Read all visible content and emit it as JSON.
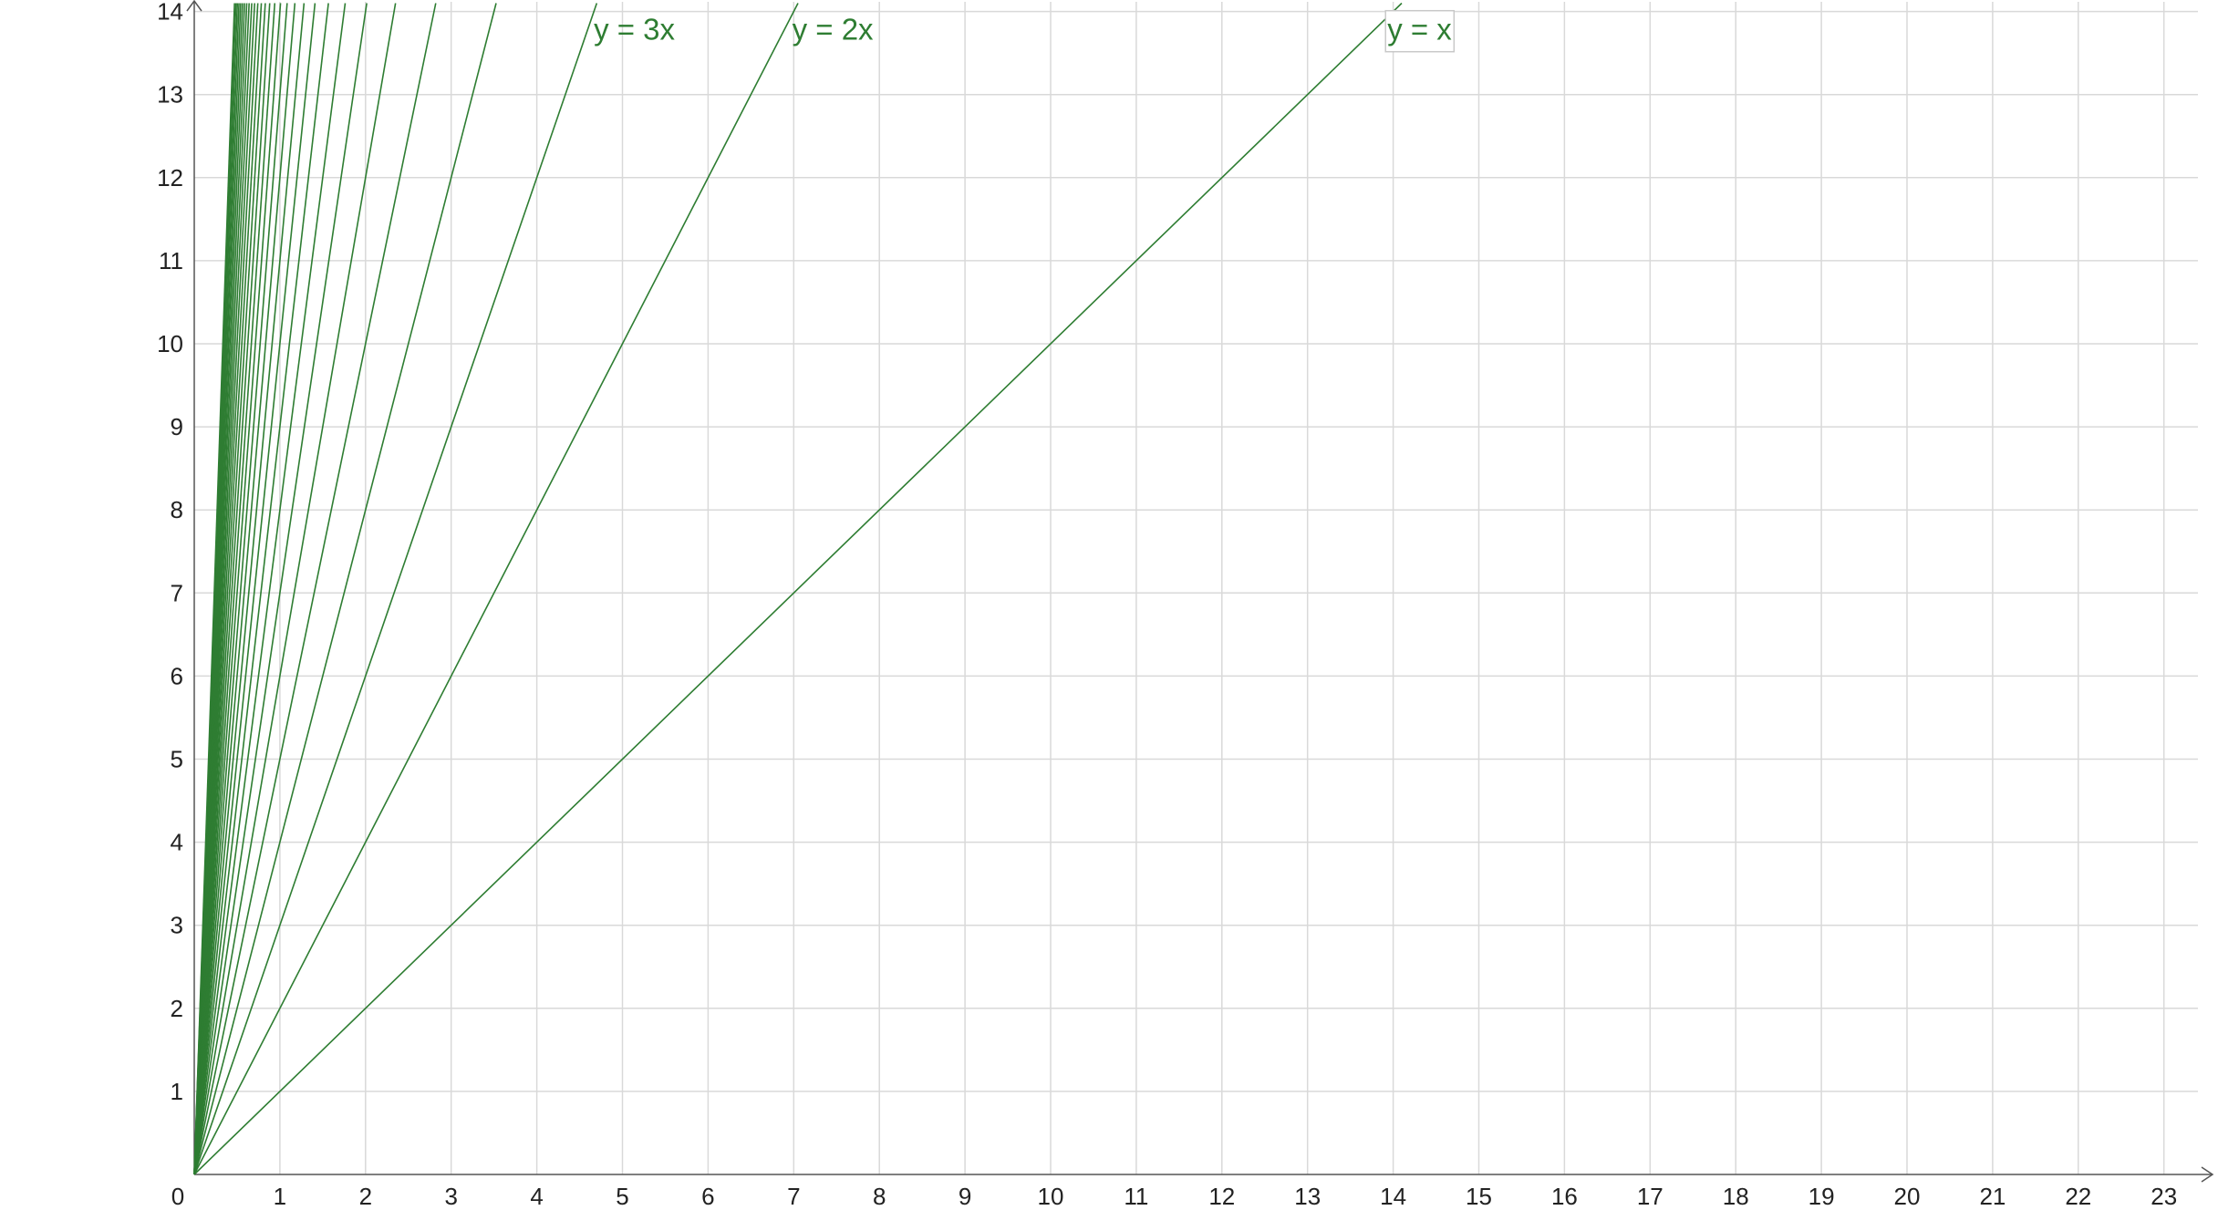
{
  "colors": {
    "series": "#2e7d32",
    "grid": "#d9d9d9",
    "axis": "#555555"
  },
  "chart_data": {
    "type": "line",
    "title": "",
    "xlabel": "",
    "ylabel": "",
    "xlim": [
      0,
      23.3
    ],
    "ylim": [
      0,
      14.1
    ],
    "grid": true,
    "x_ticks": [
      "0",
      "1",
      "2",
      "3",
      "4",
      "5",
      "6",
      "7",
      "8",
      "9",
      "10",
      "11",
      "12",
      "13",
      "14",
      "15",
      "16",
      "17",
      "18",
      "19",
      "20",
      "21",
      "22",
      "23"
    ],
    "y_ticks": [
      "1",
      "2",
      "3",
      "4",
      "5",
      "6",
      "7",
      "8",
      "9",
      "10",
      "11",
      "12",
      "13",
      "14"
    ],
    "series": [
      {
        "name": "y = x",
        "slope": 1,
        "labeled": true,
        "boxed": true,
        "label_at_y": 13.9
      },
      {
        "name": "y = 2x",
        "slope": 2,
        "labeled": true,
        "boxed": false,
        "label_at_y": 13.9
      },
      {
        "name": "y = 3x",
        "slope": 3,
        "labeled": true,
        "boxed": false,
        "label_at_y": 13.9
      },
      {
        "slope": 4
      },
      {
        "slope": 5
      },
      {
        "slope": 6
      },
      {
        "slope": 7
      },
      {
        "slope": 8
      },
      {
        "slope": 9
      },
      {
        "slope": 10
      },
      {
        "slope": 11
      },
      {
        "slope": 12
      },
      {
        "slope": 13
      },
      {
        "slope": 14
      },
      {
        "slope": 15
      },
      {
        "slope": 16
      },
      {
        "slope": 17
      },
      {
        "slope": 18
      },
      {
        "slope": 19
      },
      {
        "slope": 20
      },
      {
        "slope": 21
      },
      {
        "slope": 22
      },
      {
        "slope": 23
      },
      {
        "slope": 24
      },
      {
        "slope": 25
      },
      {
        "slope": 26
      },
      {
        "slope": 27
      },
      {
        "slope": 28
      },
      {
        "slope": 29
      },
      {
        "slope": 30
      }
    ]
  }
}
